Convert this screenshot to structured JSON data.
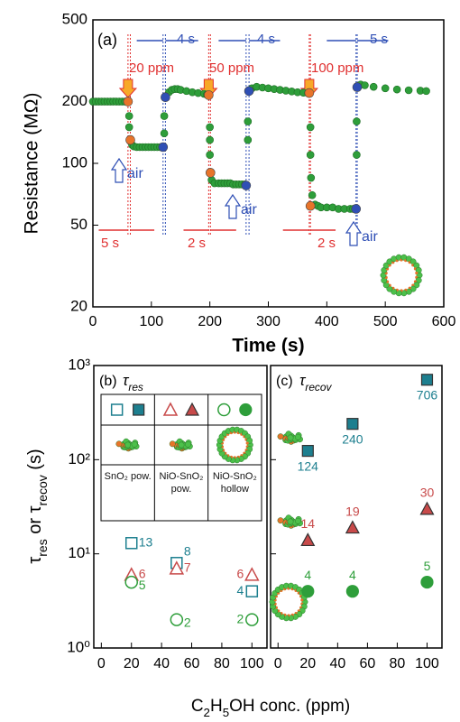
{
  "figure": {
    "ylabel_parts": [
      "τ",
      "res",
      " or τ",
      "recov",
      " (s)"
    ],
    "xlabel_parts": [
      "C",
      "2",
      "H",
      "5",
      "OH conc. (ppm)"
    ]
  },
  "chart_data": [
    {
      "type": "scatter",
      "ylabel": "Resistance (MΩ)",
      "xlabel": "Time (s)",
      "log_y": true,
      "xlim": [
        0,
        600
      ],
      "xticks": [
        0,
        100,
        200,
        300,
        400,
        500,
        600
      ],
      "ylim": [
        20,
        500
      ],
      "yticks": [
        20,
        50,
        100,
        200,
        500
      ],
      "annotations": [
        "(a)",
        "20 ppm",
        "50 ppm",
        "100 ppm",
        "4 s",
        "4 s",
        "5 s",
        "5 s",
        "2 s",
        "2 s",
        "air",
        "air",
        "air"
      ],
      "series": [
        {
          "color": "#2e9e3a",
          "x": [
            0,
            5,
            10,
            15,
            20,
            25,
            30,
            35,
            40,
            45,
            50,
            55,
            62,
            62,
            64,
            67,
            70,
            75,
            80,
            85,
            90,
            95,
            100,
            105,
            110,
            115,
            120,
            122,
            122,
            124,
            130,
            135,
            140,
            145,
            150,
            160,
            170,
            180,
            190,
            195,
            200,
            200,
            200,
            203,
            208,
            215,
            220,
            225,
            230,
            235,
            240,
            245,
            250,
            255,
            260,
            265,
            265,
            267,
            272,
            280,
            290,
            300,
            310,
            320,
            330,
            340,
            350,
            360,
            368,
            372,
            372,
            373,
            375,
            380,
            385,
            390,
            400,
            410,
            420,
            430,
            440,
            445,
            451,
            451,
            452,
            458,
            465,
            480,
            500,
            520,
            540,
            560,
            570
          ],
          "values": [
            200,
            200,
            200,
            200,
            200,
            200,
            200,
            200,
            200,
            200,
            200,
            200,
            170,
            150,
            130,
            123,
            121,
            120,
            120,
            120,
            120,
            120,
            120,
            120,
            120,
            120,
            120,
            140,
            170,
            210,
            222,
            228,
            230,
            230,
            228,
            225,
            222,
            220,
            218,
            216,
            150,
            130,
            110,
            83,
            80,
            80,
            80,
            80,
            80,
            80,
            79,
            79,
            79,
            79,
            79,
            130,
            160,
            225,
            232,
            236,
            234,
            232,
            230,
            228,
            226,
            224,
            222,
            221,
            220,
            150,
            110,
            85,
            70,
            63,
            62,
            61,
            61,
            61,
            60,
            60,
            60,
            60,
            110,
            160,
            235,
            242,
            240,
            236,
            232,
            229,
            227,
            226,
            225
          ]
        },
        {
          "color": "#e8742a",
          "x": [
            60,
            64,
            198,
            201,
            370,
            372
          ],
          "values": [
            200,
            130,
            215,
            90,
            220,
            62
          ]
        },
        {
          "color": "#2f4fb5",
          "x": [
            120,
            124,
            262,
            267,
            450,
            452
          ],
          "values": [
            120,
            210,
            78,
            225,
            60,
            235
          ]
        }
      ]
    },
    {
      "type": "scatter",
      "panel_label": "(b)",
      "title_parts": [
        "τ",
        "res"
      ],
      "log_y": true,
      "filled": false,
      "xlim": [
        -5,
        110
      ],
      "xticks": [
        0,
        20,
        40,
        60,
        80,
        100
      ],
      "ylim": [
        1,
        1000
      ],
      "yticks": [
        {
          "value": 1,
          "label": "10⁰"
        },
        {
          "value": 10,
          "label": "10¹"
        },
        {
          "value": 100,
          "label": "10²"
        },
        {
          "value": 1000,
          "label": "10³"
        }
      ],
      "series": [
        {
          "name": "SnO₂ pow.",
          "marker": "square",
          "color": "#1d7f8f",
          "x": [
            20,
            50,
            100
          ],
          "values": [
            13,
            8,
            4
          ]
        },
        {
          "name": "NiO-SnO₂ pow.",
          "marker": "triangle",
          "color": "#c84a4a",
          "x": [
            20,
            50,
            100
          ],
          "values": [
            6,
            7,
            6
          ]
        },
        {
          "name": "NiO-SnO₂ hollow",
          "marker": "circle",
          "color": "#2e9e3a",
          "x": [
            20,
            50,
            100
          ],
          "values": [
            5,
            2,
            2
          ]
        }
      ]
    },
    {
      "type": "scatter",
      "panel_label": "(c)",
      "title_parts": [
        "τ",
        "recov"
      ],
      "log_y": true,
      "filled": true,
      "xlim": [
        -5,
        110
      ],
      "xticks": [
        0,
        20,
        40,
        60,
        80,
        100
      ],
      "ylim": [
        1,
        1000
      ],
      "yticks": [
        1,
        10,
        100,
        1000
      ],
      "series": [
        {
          "marker": "square",
          "color": "#1d7f8f",
          "x": [
            20,
            50,
            100
          ],
          "values": [
            124,
            240,
            706
          ]
        },
        {
          "marker": "triangle",
          "color": "#c84a4a",
          "x": [
            20,
            50,
            100
          ],
          "values": [
            14,
            19,
            30
          ]
        },
        {
          "marker": "circle",
          "color": "#2e9e3a",
          "x": [
            20,
            50,
            100
          ],
          "values": [
            4,
            4,
            5
          ]
        }
      ]
    }
  ]
}
